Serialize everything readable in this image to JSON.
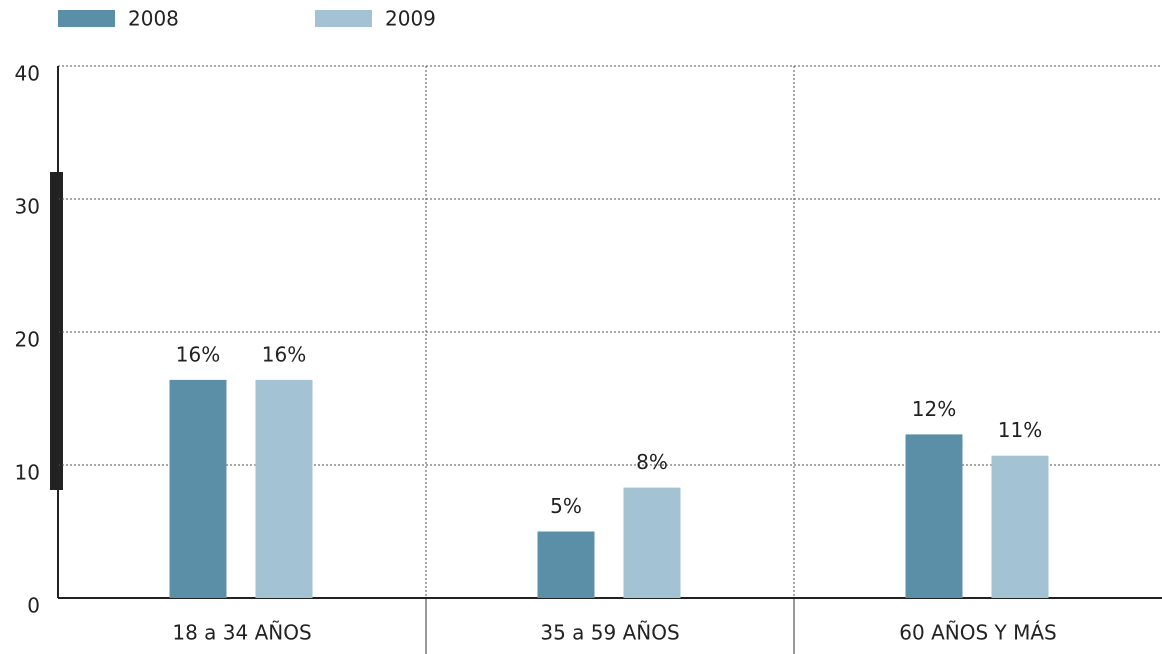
{
  "chart_data": {
    "type": "bar",
    "categories": [
      "18 a 34 AÑOS",
      "35 a 59 AÑOS",
      "60 AÑOS Y MÁS"
    ],
    "series": [
      {
        "name": "2008",
        "color": "#5b8fa8",
        "values": [
          16.4,
          5.0,
          12.3
        ],
        "value_labels": [
          "16%",
          "5%",
          "12%"
        ]
      },
      {
        "name": "2009",
        "color": "#a3c3d4",
        "values": [
          16.4,
          8.3,
          10.7
        ],
        "value_labels": [
          "16%",
          "8%",
          "11%"
        ]
      }
    ],
    "ylim": [
      0,
      40
    ],
    "yticks": [
      0,
      10,
      20,
      30,
      40
    ],
    "grid": true
  }
}
